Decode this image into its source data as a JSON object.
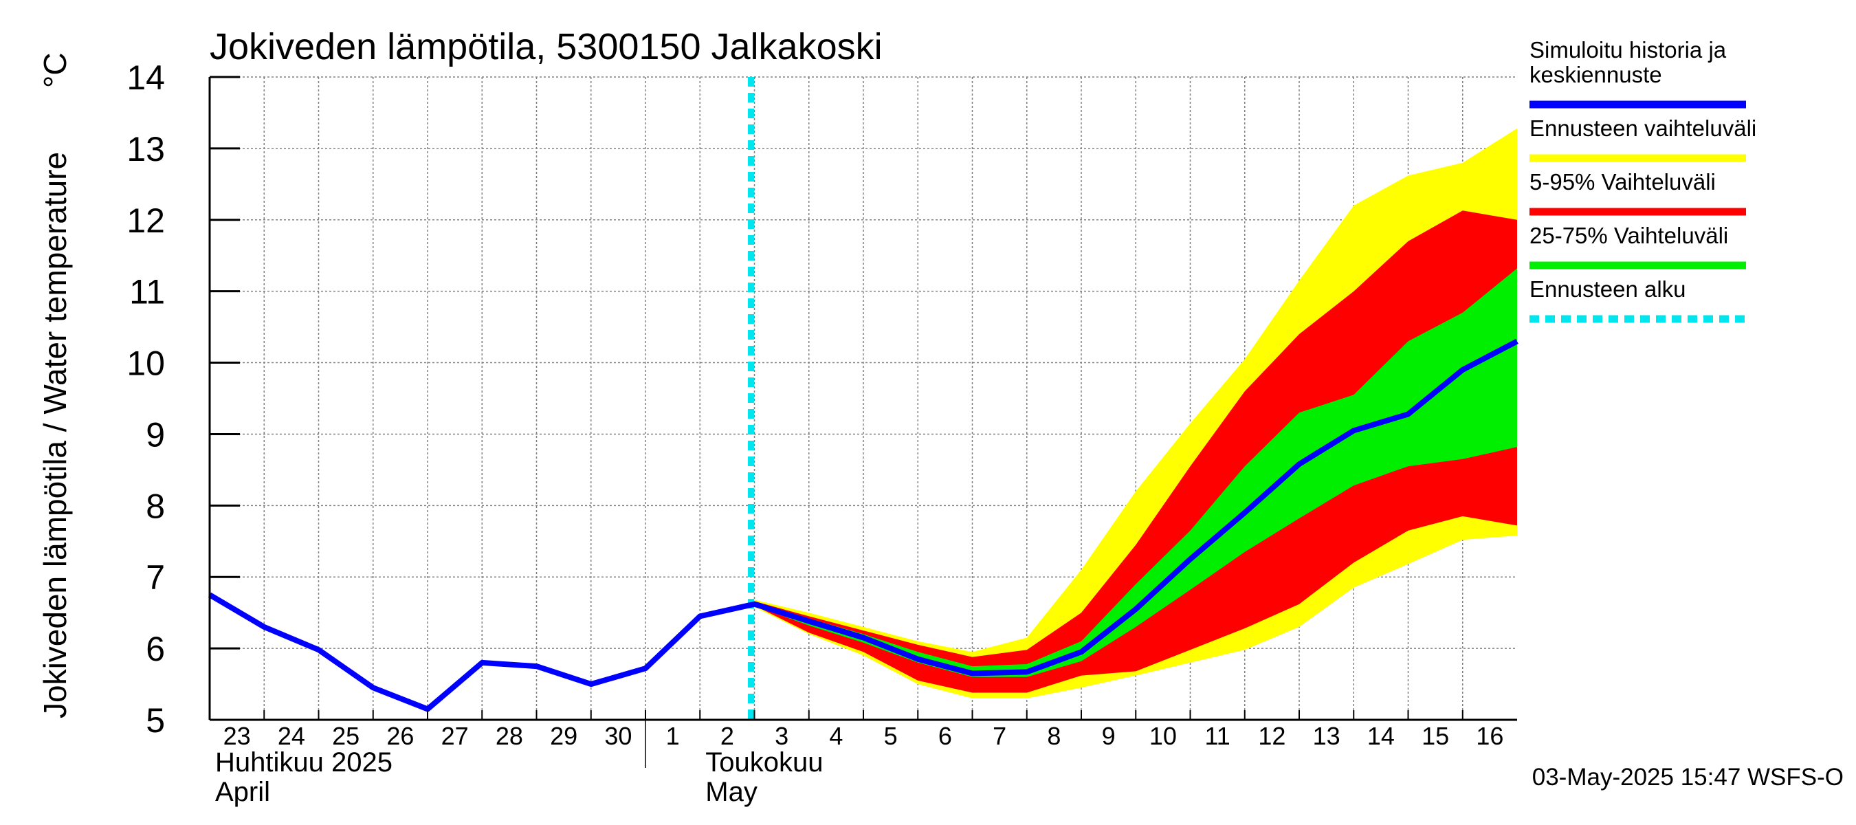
{
  "chart_data": {
    "type": "area",
    "title": "Jokiveden lämpötila, 5300150 Jalkakoski",
    "ylabel": "Jokiveden lämpötila / Water temperature",
    "yunit": "°C",
    "ylim": [
      5,
      14
    ],
    "yticks": [
      5,
      6,
      7,
      8,
      9,
      10,
      11,
      12,
      13,
      14
    ],
    "grid": true,
    "x_range_days": [
      0,
      24
    ],
    "x_ticks": [
      {
        "label": "23",
        "day": 0
      },
      {
        "label": "24",
        "day": 1
      },
      {
        "label": "25",
        "day": 2
      },
      {
        "label": "26",
        "day": 3
      },
      {
        "label": "27",
        "day": 4
      },
      {
        "label": "28",
        "day": 5
      },
      {
        "label": "29",
        "day": 6
      },
      {
        "label": "30",
        "day": 7
      },
      {
        "label": "1",
        "day": 8
      },
      {
        "label": "2",
        "day": 9
      },
      {
        "label": "3",
        "day": 10
      },
      {
        "label": "4",
        "day": 11
      },
      {
        "label": "5",
        "day": 12
      },
      {
        "label": "6",
        "day": 13
      },
      {
        "label": "7",
        "day": 14
      },
      {
        "label": "8",
        "day": 15
      },
      {
        "label": "9",
        "day": 16
      },
      {
        "label": "10",
        "day": 17
      },
      {
        "label": "11",
        "day": 18
      },
      {
        "label": "12",
        "day": 19
      },
      {
        "label": "13",
        "day": 20
      },
      {
        "label": "14",
        "day": 21
      },
      {
        "label": "15",
        "day": 22
      },
      {
        "label": "16",
        "day": 23
      }
    ],
    "months": [
      {
        "line1": "Huhtikuu  2025",
        "line2": "April",
        "day": 0
      },
      {
        "line1": "Toukokuu",
        "line2": "May",
        "day": 9
      }
    ],
    "month_boundary_day": 8,
    "forecast_start_day": 10,
    "series": {
      "history_median": {
        "name": "Simuloitu historia ja keskiennuste",
        "color": "#0000ff",
        "points": [
          [
            0,
            6.75
          ],
          [
            1,
            6.3
          ],
          [
            2,
            5.98
          ],
          [
            3,
            5.45
          ],
          [
            4,
            5.15
          ],
          [
            5,
            5.8
          ],
          [
            6,
            5.75
          ],
          [
            7,
            5.5
          ],
          [
            8,
            5.72
          ],
          [
            9,
            6.45
          ],
          [
            10,
            6.62
          ],
          [
            11,
            6.38
          ],
          [
            12,
            6.15
          ],
          [
            13,
            5.85
          ],
          [
            14,
            5.65
          ],
          [
            15,
            5.67
          ],
          [
            16,
            5.95
          ],
          [
            17,
            6.55
          ],
          [
            18,
            7.25
          ],
          [
            19,
            7.9
          ],
          [
            20,
            8.58
          ],
          [
            21,
            9.05
          ],
          [
            22,
            9.28
          ],
          [
            23,
            9.9
          ],
          [
            24,
            10.3
          ]
        ]
      },
      "forecast_range": {
        "name": "Ennusteen vaihteluväli",
        "color": "#ffff00",
        "upper": [
          [
            10,
            6.68
          ],
          [
            11,
            6.5
          ],
          [
            12,
            6.3
          ],
          [
            13,
            6.1
          ],
          [
            14,
            5.95
          ],
          [
            15,
            6.15
          ],
          [
            16,
            7.1
          ],
          [
            17,
            8.2
          ],
          [
            18,
            9.15
          ],
          [
            19,
            10.05
          ],
          [
            20,
            11.15
          ],
          [
            21,
            12.2
          ],
          [
            22,
            12.62
          ],
          [
            23,
            12.8
          ],
          [
            24,
            13.28
          ]
        ],
        "lower": [
          [
            10,
            6.58
          ],
          [
            11,
            6.2
          ],
          [
            12,
            5.9
          ],
          [
            13,
            5.5
          ],
          [
            14,
            5.3
          ],
          [
            15,
            5.3
          ],
          [
            16,
            5.45
          ],
          [
            17,
            5.62
          ],
          [
            18,
            5.8
          ],
          [
            19,
            5.98
          ],
          [
            20,
            6.3
          ],
          [
            21,
            6.85
          ],
          [
            22,
            7.18
          ],
          [
            23,
            7.52
          ],
          [
            24,
            7.58
          ]
        ]
      },
      "p5_95": {
        "name": "5-95% Vaihteluväli",
        "color": "#ff0000",
        "upper": [
          [
            10,
            6.66
          ],
          [
            11,
            6.45
          ],
          [
            12,
            6.25
          ],
          [
            13,
            6.05
          ],
          [
            14,
            5.88
          ],
          [
            15,
            5.98
          ],
          [
            16,
            6.5
          ],
          [
            17,
            7.45
          ],
          [
            18,
            8.55
          ],
          [
            19,
            9.6
          ],
          [
            20,
            10.4
          ],
          [
            21,
            11.0
          ],
          [
            22,
            11.7
          ],
          [
            23,
            12.13
          ],
          [
            24,
            12.0
          ]
        ],
        "lower": [
          [
            10,
            6.6
          ],
          [
            11,
            6.22
          ],
          [
            12,
            5.95
          ],
          [
            13,
            5.55
          ],
          [
            14,
            5.38
          ],
          [
            15,
            5.38
          ],
          [
            16,
            5.62
          ],
          [
            17,
            5.68
          ],
          [
            18,
            5.98
          ],
          [
            19,
            6.28
          ],
          [
            20,
            6.62
          ],
          [
            21,
            7.2
          ],
          [
            22,
            7.65
          ],
          [
            23,
            7.85
          ],
          [
            24,
            7.72
          ]
        ]
      },
      "p25_75": {
        "name": "25-75% Vaihteluväli",
        "color": "#00ee00",
        "upper": [
          [
            10,
            6.64
          ],
          [
            11,
            6.42
          ],
          [
            12,
            6.2
          ],
          [
            13,
            5.95
          ],
          [
            14,
            5.75
          ],
          [
            15,
            5.78
          ],
          [
            16,
            6.1
          ],
          [
            17,
            6.9
          ],
          [
            18,
            7.65
          ],
          [
            19,
            8.55
          ],
          [
            20,
            9.3
          ],
          [
            21,
            9.55
          ],
          [
            22,
            10.3
          ],
          [
            23,
            10.7
          ],
          [
            24,
            11.32
          ]
        ],
        "lower": [
          [
            10,
            6.6
          ],
          [
            11,
            6.32
          ],
          [
            12,
            6.08
          ],
          [
            13,
            5.8
          ],
          [
            14,
            5.6
          ],
          [
            15,
            5.6
          ],
          [
            16,
            5.82
          ],
          [
            17,
            6.3
          ],
          [
            18,
            6.82
          ],
          [
            19,
            7.35
          ],
          [
            20,
            7.82
          ],
          [
            21,
            8.28
          ],
          [
            22,
            8.55
          ],
          [
            23,
            8.65
          ],
          [
            24,
            8.82
          ]
        ]
      }
    },
    "legend": [
      {
        "label": "Simuloitu historia ja keskiennuste",
        "lines": [
          "Simuloitu historia ja",
          "keskiennuste"
        ],
        "color": "#0000ff",
        "style": "solid"
      },
      {
        "label": "Ennusteen vaihteluväli",
        "lines": [
          "Ennusteen vaihteluväli"
        ],
        "color": "#ffff00",
        "style": "solid"
      },
      {
        "label": "5-95% Vaihteluväli",
        "lines": [
          "5-95% Vaihteluväli"
        ],
        "color": "#ff0000",
        "style": "solid"
      },
      {
        "label": "25-75% Vaihteluväli",
        "lines": [
          "25-75% Vaihteluväli"
        ],
        "color": "#00ee00",
        "style": "solid"
      },
      {
        "label": "Ennusteen alku",
        "lines": [
          "Ennusteen alku"
        ],
        "color": "#00e5ee",
        "style": "dashed"
      }
    ],
    "legend_position": "right",
    "footer": "03-May-2025 15:47 WSFS-O"
  }
}
